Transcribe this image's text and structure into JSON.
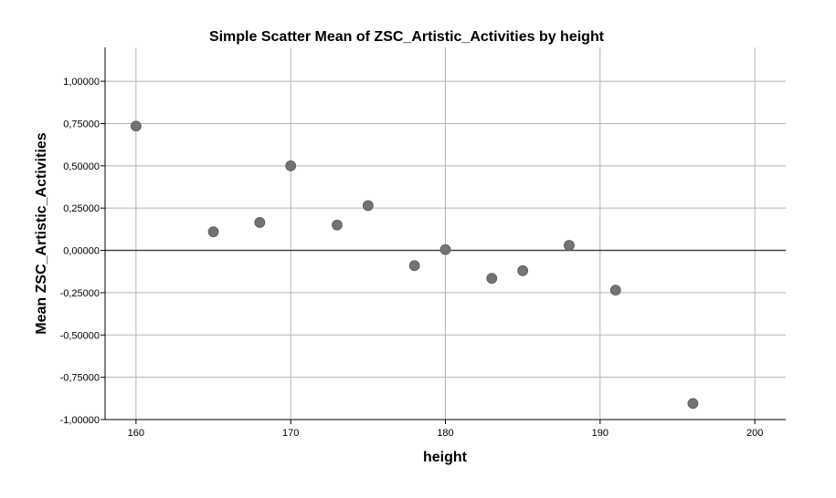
{
  "chart_data": {
    "type": "scatter",
    "title": "Simple Scatter Mean of ZSC_Artistic_Activities by height",
    "xlabel": "height",
    "ylabel": "Mean ZSC_Artistic_Activities",
    "xlim": [
      158,
      202
    ],
    "ylim": [
      -1.0,
      1.2
    ],
    "x_ticks": [
      160,
      170,
      180,
      190,
      200
    ],
    "x_tick_labels": [
      "160",
      "170",
      "180",
      "190",
      "200"
    ],
    "y_ticks": [
      1.0,
      0.75,
      0.5,
      0.25,
      0.0,
      -0.25,
      -0.5,
      -0.75,
      -1.0
    ],
    "y_tick_labels": [
      "1,00000",
      "0,75000",
      "0,50000",
      "0,25000",
      "0,00000",
      "-0,25000",
      "-0,50000",
      "-0,75000",
      "-1,00000"
    ],
    "grid": true,
    "reference_line_y": 0,
    "marker_color": "#737373",
    "grid_color": "#b5b5b5",
    "points": [
      {
        "x": 160,
        "y": 0.735
      },
      {
        "x": 165,
        "y": 0.11
      },
      {
        "x": 168,
        "y": 0.165
      },
      {
        "x": 170,
        "y": 0.5
      },
      {
        "x": 173,
        "y": 0.15
      },
      {
        "x": 175,
        "y": 0.265
      },
      {
        "x": 178,
        "y": -0.09
      },
      {
        "x": 180,
        "y": 0.005
      },
      {
        "x": 183,
        "y": -0.165
      },
      {
        "x": 185,
        "y": -0.12
      },
      {
        "x": 188,
        "y": 0.03
      },
      {
        "x": 191,
        "y": -0.235
      },
      {
        "x": 196,
        "y": -0.905
      }
    ]
  }
}
